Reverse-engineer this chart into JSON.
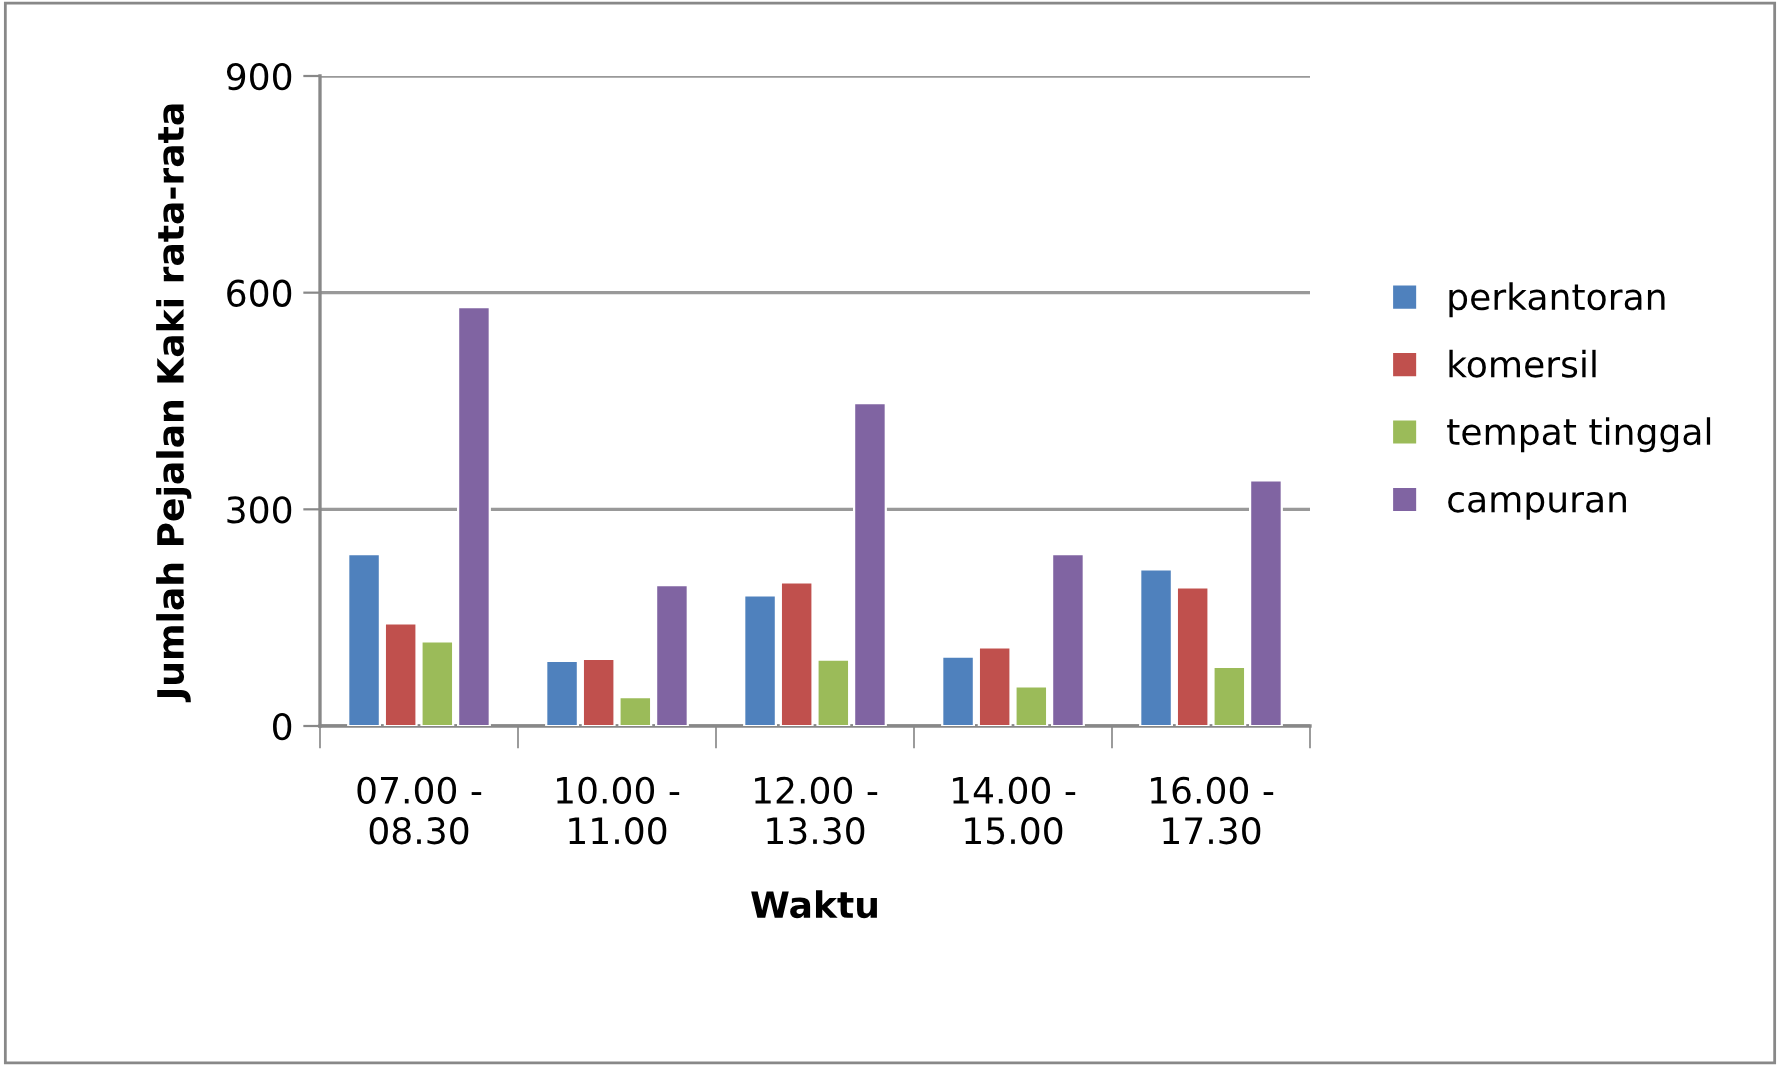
{
  "chart_data": {
    "type": "bar",
    "xlabel": "Waktu",
    "ylabel": "Jumlah Pejalan Kaki rata-rata",
    "categories": [
      "07.00 -\n08.30",
      "10.00 -\n11.00",
      "12.00 -\n13.30",
      "14.00 -\n15.00",
      "16.00 -\n17.30"
    ],
    "series": [
      {
        "name": "perkantoran",
        "color": "#4f81bd",
        "values": [
          238,
          90,
          181,
          96,
          217
        ]
      },
      {
        "name": "komersil",
        "color": "#c0504d",
        "values": [
          142,
          93,
          199,
          109,
          192
        ]
      },
      {
        "name": "tempat tinggal",
        "color": "#9bbb59",
        "values": [
          117,
          40,
          92,
          55,
          82
        ]
      },
      {
        "name": "campuran",
        "color": "#8064a2",
        "values": [
          580,
          195,
          447,
          238,
          340
        ]
      }
    ],
    "ylim": [
      0,
      900
    ],
    "yticks": [
      0,
      300,
      600,
      900
    ],
    "grid": "y",
    "legend": "right"
  }
}
